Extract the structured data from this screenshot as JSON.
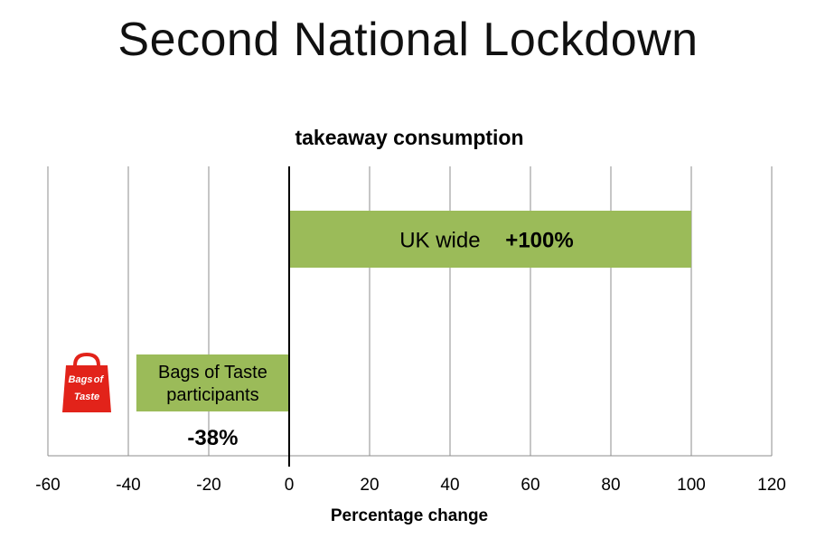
{
  "slide": {
    "title": "Second National Lockdown"
  },
  "logo": {
    "name": "Bags of Taste",
    "line1": "Bags",
    "line2": "of",
    "line3": "Taste",
    "color": "#e2231a"
  },
  "chart_data": {
    "type": "bar",
    "orientation": "horizontal",
    "title": "takeaway consumption",
    "xlabel": "Percentage change",
    "ylabel": "",
    "xlim": [
      -60,
      120
    ],
    "xticks": [
      -60,
      -40,
      -20,
      0,
      20,
      40,
      60,
      80,
      100,
      120
    ],
    "grid": true,
    "bar_color": "#9bbb59",
    "bars": [
      {
        "label_lines": [
          "UK wide"
        ],
        "value": 100,
        "value_label": "+100%"
      },
      {
        "label_lines": [
          "Bags of Taste",
          "participants"
        ],
        "value": -38,
        "value_label": "-38%"
      }
    ]
  }
}
